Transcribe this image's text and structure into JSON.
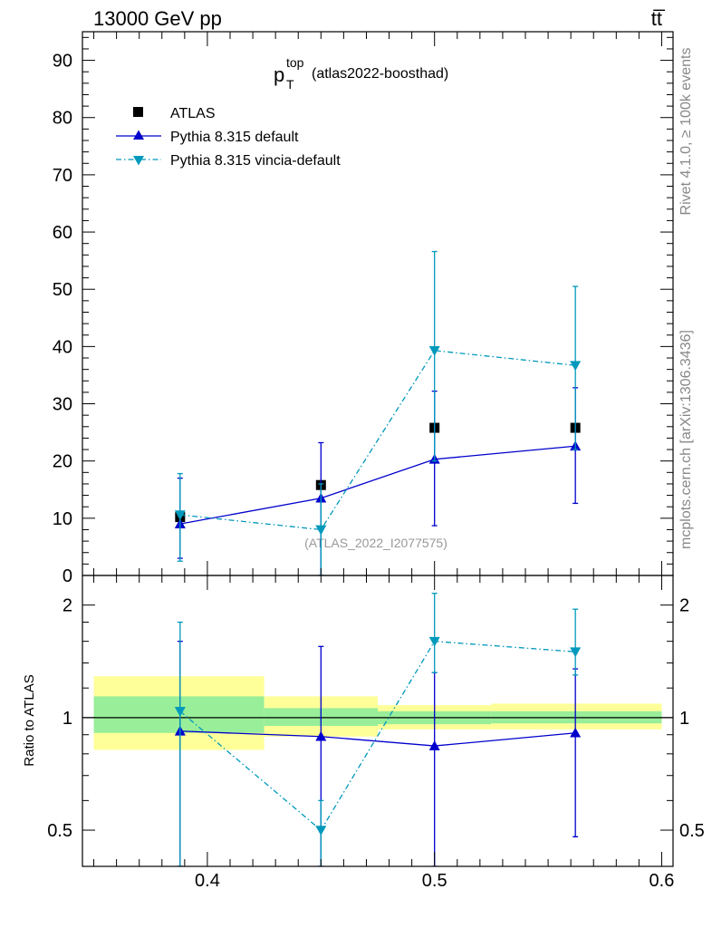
{
  "header": {
    "left": "13000 GeV pp",
    "right": "tt̅"
  },
  "title": {
    "base": "p",
    "sup": "top",
    "sub": "T",
    "rest": "(atlas2022-boosthad)"
  },
  "side_text": {
    "rivet": "Rivet 4.1.0, ≥ 100k events",
    "mcplots": "mcplots.cern.ch [arXiv:1306.3436]"
  },
  "watermark": "(ATLAS_2022_I2077575)",
  "ratio_ylabel": "Ratio to ATLAS",
  "colors": {
    "data": "#000000",
    "default": "#0000cc",
    "vincia": "#0099bb",
    "band_green": "#99ee99",
    "band_yellow": "#ffff99"
  },
  "chart_data": {
    "type": "line",
    "xlim": [
      0.345,
      0.605
    ],
    "main": {
      "ylim": [
        0,
        95
      ],
      "yticks": [
        10,
        20,
        30,
        40,
        50,
        60,
        70,
        80,
        90
      ],
      "yticklabels": [
        "10",
        "20",
        "30",
        "40",
        "50",
        "60",
        "70",
        "80",
        "90"
      ]
    },
    "ratio": {
      "ylim": [
        0.4,
        2.4
      ],
      "log": true,
      "yticks": [
        0.5,
        1,
        2
      ],
      "yticklabels": [
        "0.5",
        "1",
        "2"
      ]
    },
    "xticks": [
      0.4,
      0.5,
      0.6
    ],
    "xticklabels": [
      "0.4",
      "0.5",
      "0.6"
    ],
    "bins": [
      [
        0.35,
        0.425
      ],
      [
        0.425,
        0.475
      ],
      [
        0.475,
        0.525
      ],
      [
        0.525,
        0.6
      ]
    ],
    "x": [
      0.388,
      0.45,
      0.5,
      0.562
    ],
    "series": [
      {
        "name": "ATLAS",
        "style": "data",
        "values": [
          10.2,
          15.8,
          25.8,
          25.8
        ],
        "ratio_band_green": [
          [
            0.91,
            1.14
          ],
          [
            0.95,
            1.06
          ],
          [
            0.96,
            1.04
          ],
          [
            0.965,
            1.04
          ]
        ],
        "ratio_band_yellow": [
          [
            0.82,
            1.29
          ],
          [
            0.89,
            1.14
          ],
          [
            0.93,
            1.08
          ],
          [
            0.93,
            1.09
          ]
        ]
      },
      {
        "name": "Pythia 8.315 default",
        "style": "default",
        "values": [
          9.0,
          13.5,
          20.3,
          22.6
        ],
        "err_lo": [
          3.0,
          0,
          8.7,
          12.6
        ],
        "err_hi": [
          17.0,
          23.2,
          32.2,
          32.8
        ],
        "ratio": [
          0.92,
          0.89,
          0.84,
          0.91
        ],
        "ratio_lo": [
          0.4,
          0.4,
          0.4,
          0.48
        ],
        "ratio_hi": [
          1.6,
          1.55,
          1.32,
          1.35
        ]
      },
      {
        "name": "Pythia 8.315 vincia-default",
        "style": "vincia",
        "values": [
          10.6,
          8.0,
          39.3,
          36.7
        ],
        "err_lo": [
          2.5,
          0,
          20.0,
          22.0
        ],
        "err_hi": [
          17.8,
          16.0,
          56.6,
          50.5
        ],
        "ratio": [
          1.04,
          0.5,
          1.6,
          1.5
        ],
        "ratio_lo": [
          0.4,
          0.4,
          1.32,
          1.3
        ],
        "ratio_hi": [
          1.8,
          0.6,
          2.15,
          1.95
        ]
      }
    ]
  }
}
